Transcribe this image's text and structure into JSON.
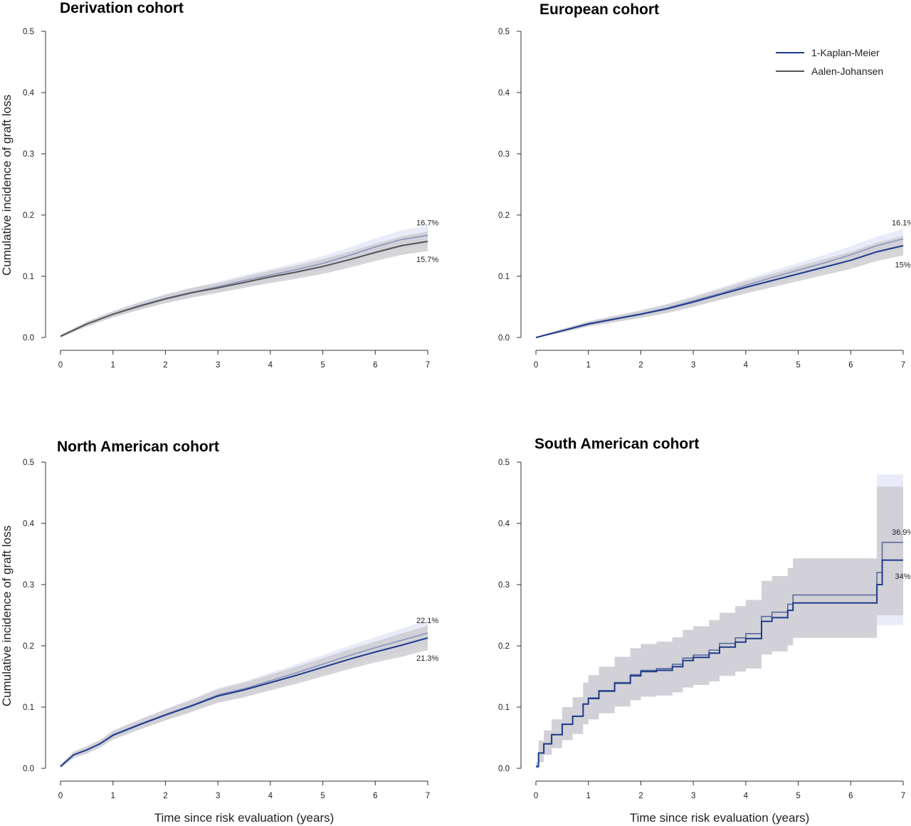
{
  "chart_data": [
    {
      "type": "line",
      "title": "Derivation cohort",
      "xlabel": "",
      "ylabel": "Cumulative incidence of graft loss",
      "xlim": [
        0,
        7
      ],
      "ylim": [
        0,
        0.5
      ],
      "x_ticks": [
        "0",
        "1",
        "2",
        "3",
        "4",
        "5",
        "6",
        "7"
      ],
      "y_ticks": [
        "0.0",
        "0.1",
        "0.2",
        "0.3",
        "0.4",
        "0.5"
      ],
      "grid": false,
      "series": [
        {
          "name": "1-Kaplan-Meier",
          "color": "#8a95c0",
          "band_color": "#e2e4f6",
          "x": [
            0,
            0.5,
            1,
            1.5,
            2,
            2.5,
            3,
            3.5,
            4,
            4.5,
            5,
            5.5,
            6,
            6.5,
            7
          ],
          "y": [
            0.002,
            0.022,
            0.038,
            0.052,
            0.064,
            0.074,
            0.083,
            0.093,
            0.102,
            0.111,
            0.121,
            0.134,
            0.148,
            0.16,
            0.167
          ],
          "lower": [
            0.0,
            0.018,
            0.033,
            0.046,
            0.057,
            0.067,
            0.075,
            0.084,
            0.092,
            0.1,
            0.109,
            0.121,
            0.134,
            0.145,
            0.151
          ],
          "upper": [
            0.004,
            0.026,
            0.043,
            0.058,
            0.071,
            0.081,
            0.091,
            0.102,
            0.112,
            0.122,
            0.133,
            0.147,
            0.162,
            0.175,
            0.183
          ]
        },
        {
          "name": "Aalen-Johansen",
          "color": "#555555",
          "band_color": "#c8c8cc",
          "x": [
            0,
            0.5,
            1,
            1.5,
            2,
            2.5,
            3,
            3.5,
            4,
            4.5,
            5,
            5.5,
            6,
            6.5,
            7
          ],
          "y": [
            0.002,
            0.022,
            0.038,
            0.051,
            0.063,
            0.073,
            0.081,
            0.09,
            0.099,
            0.107,
            0.116,
            0.127,
            0.139,
            0.15,
            0.157
          ],
          "lower": [
            0.0,
            0.018,
            0.033,
            0.045,
            0.056,
            0.065,
            0.073,
            0.081,
            0.089,
            0.096,
            0.104,
            0.114,
            0.125,
            0.135,
            0.141
          ],
          "upper": [
            0.004,
            0.026,
            0.043,
            0.057,
            0.07,
            0.081,
            0.089,
            0.099,
            0.109,
            0.118,
            0.128,
            0.14,
            0.153,
            0.165,
            0.173
          ]
        }
      ],
      "annotations": [
        {
          "text": "16.7%",
          "x": 6.75,
          "y": 0.188
        },
        {
          "text": "15.7%",
          "x": 6.75,
          "y": 0.128
        }
      ]
    },
    {
      "type": "line",
      "title": "European cohort",
      "xlabel": "",
      "ylabel": "",
      "xlim": [
        0,
        7
      ],
      "ylim": [
        0,
        0.5
      ],
      "x_ticks": [
        "0",
        "1",
        "2",
        "3",
        "4",
        "5",
        "6",
        "7"
      ],
      "y_ticks": [
        "0.0",
        "0.1",
        "0.2",
        "0.3",
        "0.4",
        "0.5"
      ],
      "grid": false,
      "legend_position": "top-right",
      "legend": [
        {
          "label": "1-Kaplan-Meier",
          "color": "#1f3a8a"
        },
        {
          "label": "Aalen-Johansen",
          "color": "#555555"
        }
      ],
      "series": [
        {
          "name": "1-Kaplan-Meier",
          "color": "#8a95c0",
          "band_color": "#e2e4f6",
          "x": [
            0,
            0.5,
            1,
            1.5,
            2,
            2.5,
            3,
            3.5,
            4,
            4.5,
            5,
            5.5,
            6,
            6.5,
            7
          ],
          "y": [
            0.0,
            0.011,
            0.023,
            0.031,
            0.039,
            0.048,
            0.06,
            0.072,
            0.085,
            0.098,
            0.11,
            0.122,
            0.135,
            0.15,
            0.161
          ],
          "lower": [
            0.0,
            0.008,
            0.019,
            0.026,
            0.033,
            0.041,
            0.052,
            0.063,
            0.075,
            0.087,
            0.098,
            0.109,
            0.121,
            0.135,
            0.145
          ],
          "upper": [
            0.001,
            0.014,
            0.027,
            0.036,
            0.045,
            0.055,
            0.068,
            0.081,
            0.095,
            0.109,
            0.122,
            0.135,
            0.149,
            0.165,
            0.177
          ]
        },
        {
          "name": "Aalen-Johansen",
          "color": "#1f3a8a",
          "band_color": "#c8c8cc",
          "x": [
            0,
            0.5,
            1,
            1.5,
            2,
            2.5,
            3,
            3.5,
            4,
            4.5,
            5,
            5.5,
            6,
            6.5,
            7
          ],
          "y": [
            0.0,
            0.011,
            0.022,
            0.03,
            0.038,
            0.047,
            0.058,
            0.07,
            0.082,
            0.093,
            0.104,
            0.115,
            0.126,
            0.14,
            0.15
          ],
          "lower": [
            0.0,
            0.008,
            0.018,
            0.025,
            0.032,
            0.04,
            0.05,
            0.061,
            0.072,
            0.082,
            0.092,
            0.102,
            0.112,
            0.125,
            0.134
          ],
          "upper": [
            0.001,
            0.014,
            0.026,
            0.035,
            0.044,
            0.054,
            0.066,
            0.079,
            0.092,
            0.104,
            0.116,
            0.128,
            0.14,
            0.155,
            0.166
          ]
        }
      ],
      "annotations": [
        {
          "text": "16.1%",
          "x": 6.75,
          "y": 0.188
        },
        {
          "text": "15%",
          "x": 6.75,
          "y": 0.119
        }
      ]
    },
    {
      "type": "line",
      "title": "North American cohort",
      "xlabel": "Time since risk evaluation (years)",
      "ylabel": "Cumulative incidence of graft loss",
      "xlim": [
        0,
        7
      ],
      "ylim": [
        0,
        0.5
      ],
      "x_ticks": [
        "0",
        "1",
        "2",
        "3",
        "4",
        "5",
        "6",
        "7"
      ],
      "y_ticks": [
        "0.0",
        "0.1",
        "0.2",
        "0.3",
        "0.4",
        "0.5"
      ],
      "grid": false,
      "series": [
        {
          "name": "1-Kaplan-Meier",
          "color": "#8a95c0",
          "band_color": "#e2e4f6",
          "x": [
            0,
            0.25,
            0.5,
            0.75,
            1,
            1.5,
            2,
            2.5,
            3,
            3.5,
            4,
            4.5,
            5,
            5.5,
            6,
            6.5,
            7
          ],
          "y": [
            0.003,
            0.022,
            0.03,
            0.04,
            0.055,
            0.072,
            0.088,
            0.103,
            0.12,
            0.13,
            0.143,
            0.156,
            0.17,
            0.184,
            0.197,
            0.209,
            0.221
          ],
          "lower": [
            0.0,
            0.017,
            0.024,
            0.034,
            0.048,
            0.064,
            0.079,
            0.093,
            0.109,
            0.118,
            0.13,
            0.142,
            0.155,
            0.168,
            0.18,
            0.19,
            0.2
          ],
          "upper": [
            0.006,
            0.027,
            0.036,
            0.046,
            0.062,
            0.08,
            0.097,
            0.113,
            0.131,
            0.142,
            0.156,
            0.17,
            0.185,
            0.2,
            0.214,
            0.228,
            0.242
          ]
        },
        {
          "name": "Aalen-Johansen",
          "color": "#1f3a8a",
          "band_color": "#c8c8cc",
          "x": [
            0,
            0.25,
            0.5,
            0.75,
            1,
            1.5,
            2,
            2.5,
            3,
            3.5,
            4,
            4.5,
            5,
            5.5,
            6,
            6.5,
            7
          ],
          "y": [
            0.003,
            0.022,
            0.03,
            0.04,
            0.054,
            0.071,
            0.087,
            0.102,
            0.118,
            0.128,
            0.14,
            0.152,
            0.165,
            0.178,
            0.19,
            0.201,
            0.213
          ],
          "lower": [
            0.0,
            0.017,
            0.024,
            0.034,
            0.047,
            0.063,
            0.078,
            0.092,
            0.107,
            0.116,
            0.127,
            0.138,
            0.15,
            0.162,
            0.173,
            0.182,
            0.193
          ],
          "upper": [
            0.006,
            0.027,
            0.036,
            0.046,
            0.061,
            0.079,
            0.096,
            0.112,
            0.129,
            0.14,
            0.153,
            0.166,
            0.18,
            0.194,
            0.207,
            0.22,
            0.233
          ]
        }
      ],
      "annotations": [
        {
          "text": "22.1%",
          "x": 6.75,
          "y": 0.242
        },
        {
          "text": "21.3%",
          "x": 6.75,
          "y": 0.18
        }
      ]
    },
    {
      "type": "line",
      "title": "South American cohort",
      "xlabel": "Time since risk evaluation (years)",
      "ylabel": "",
      "xlim": [
        0,
        7
      ],
      "ylim": [
        0,
        0.5
      ],
      "x_ticks": [
        "0",
        "1",
        "2",
        "3",
        "4",
        "5",
        "6",
        "7"
      ],
      "y_ticks": [
        "0.0",
        "0.1",
        "0.2",
        "0.3",
        "0.4",
        "0.5"
      ],
      "grid": false,
      "series": [
        {
          "name": "1-Kaplan-Meier",
          "color": "#5b6a9e",
          "band_color": "#e2e4f6",
          "step": true,
          "x": [
            0,
            0.05,
            0.15,
            0.3,
            0.5,
            0.7,
            0.9,
            1.0,
            1.2,
            1.5,
            1.8,
            2.0,
            2.3,
            2.6,
            2.8,
            3.0,
            3.3,
            3.5,
            3.8,
            4.0,
            4.3,
            4.5,
            4.8,
            4.9,
            5.3,
            6.0,
            6.5,
            6.6,
            7.0
          ],
          "y": [
            0.003,
            0.025,
            0.04,
            0.055,
            0.072,
            0.085,
            0.105,
            0.115,
            0.127,
            0.14,
            0.153,
            0.16,
            0.163,
            0.17,
            0.18,
            0.185,
            0.193,
            0.204,
            0.213,
            0.22,
            0.248,
            0.255,
            0.268,
            0.283,
            0.283,
            0.283,
            0.32,
            0.369,
            0.369
          ],
          "lower": [
            0.0,
            0.01,
            0.022,
            0.033,
            0.046,
            0.056,
            0.072,
            0.08,
            0.09,
            0.101,
            0.111,
            0.117,
            0.119,
            0.124,
            0.132,
            0.136,
            0.142,
            0.151,
            0.158,
            0.163,
            0.186,
            0.191,
            0.201,
            0.213,
            0.213,
            0.213,
            0.234,
            0.234,
            0.234
          ],
          "upper": [
            0.01,
            0.045,
            0.062,
            0.08,
            0.1,
            0.116,
            0.14,
            0.152,
            0.166,
            0.182,
            0.196,
            0.203,
            0.207,
            0.214,
            0.226,
            0.232,
            0.242,
            0.254,
            0.265,
            0.275,
            0.306,
            0.314,
            0.327,
            0.343,
            0.343,
            0.343,
            0.48,
            0.48,
            0.48
          ]
        },
        {
          "name": "Aalen-Johansen",
          "color": "#1f3a8a",
          "band_color": "#c8c8cc",
          "step": true,
          "x": [
            0,
            0.05,
            0.15,
            0.3,
            0.5,
            0.7,
            0.9,
            1.0,
            1.2,
            1.5,
            1.8,
            2.0,
            2.3,
            2.6,
            2.8,
            3.0,
            3.3,
            3.5,
            3.8,
            4.0,
            4.3,
            4.5,
            4.8,
            4.9,
            5.3,
            6.0,
            6.5,
            6.6,
            7.0
          ],
          "y": [
            0.003,
            0.025,
            0.04,
            0.055,
            0.072,
            0.085,
            0.105,
            0.114,
            0.126,
            0.139,
            0.151,
            0.158,
            0.16,
            0.166,
            0.176,
            0.181,
            0.188,
            0.198,
            0.206,
            0.212,
            0.24,
            0.246,
            0.258,
            0.27,
            0.27,
            0.27,
            0.3,
            0.34,
            0.34
          ],
          "lower": [
            0.0,
            0.01,
            0.022,
            0.033,
            0.046,
            0.056,
            0.072,
            0.08,
            0.09,
            0.101,
            0.111,
            0.117,
            0.119,
            0.124,
            0.132,
            0.136,
            0.142,
            0.151,
            0.158,
            0.163,
            0.186,
            0.191,
            0.201,
            0.213,
            0.213,
            0.213,
            0.25,
            0.25,
            0.25
          ],
          "upper": [
            0.01,
            0.045,
            0.062,
            0.08,
            0.1,
            0.116,
            0.14,
            0.152,
            0.166,
            0.182,
            0.196,
            0.203,
            0.207,
            0.214,
            0.226,
            0.232,
            0.242,
            0.254,
            0.265,
            0.275,
            0.306,
            0.314,
            0.327,
            0.343,
            0.343,
            0.343,
            0.46,
            0.46,
            0.46
          ]
        }
      ],
      "annotations": [
        {
          "text": "36.9%",
          "x": 6.75,
          "y": 0.386
        },
        {
          "text": "34%",
          "x": 6.75,
          "y": 0.314
        }
      ]
    }
  ]
}
